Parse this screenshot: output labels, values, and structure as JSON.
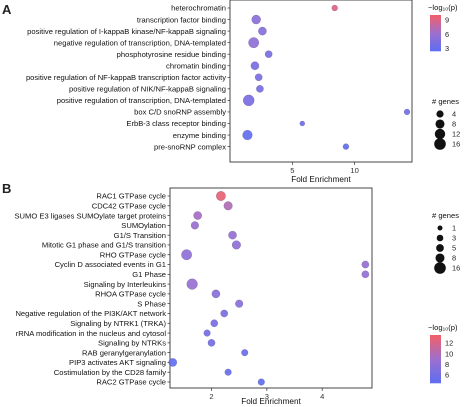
{
  "chart_data": [
    {
      "panel": "A",
      "type": "scatter",
      "xlabel": "Fold Enrichment",
      "xlim": [
        0,
        14.6
      ],
      "xticks": [
        5,
        10
      ],
      "categories": [
        "heterochromatin",
        "transcription factor binding",
        "positive regulation of I-kappaB kinase/NF-kappaB signaling",
        "negative regulation of transcription, DNA-templated",
        "phosphotyrosine residue binding",
        "chromatin binding",
        "positive regulation of NF-kappaB transcription factor activity",
        "positive regulation of NIK/NF-kappaB signaling",
        "positive regulation of transcription, DNA-templated",
        "box C/D snoRNP assembly",
        "ErbB-3 class receptor binding",
        "enzyme binding",
        "pre-snoRNP complex"
      ],
      "points": [
        {
          "x": 8.4,
          "genes": 2,
          "neglog10p": 9.2
        },
        {
          "x": 2.1,
          "genes": 8,
          "neglog10p": 5.3
        },
        {
          "x": 2.6,
          "genes": 6,
          "neglog10p": 5.0
        },
        {
          "x": 1.9,
          "genes": 12,
          "neglog10p": 5.6
        },
        {
          "x": 3.1,
          "genes": 4,
          "neglog10p": 4.3
        },
        {
          "x": 2.0,
          "genes": 6,
          "neglog10p": 4.2
        },
        {
          "x": 2.3,
          "genes": 4,
          "neglog10p": 4.2
        },
        {
          "x": 2.4,
          "genes": 4,
          "neglog10p": 4.1
        },
        {
          "x": 1.5,
          "genes": 14,
          "neglog10p": 4.3
        },
        {
          "x": 14.2,
          "genes": 2,
          "neglog10p": 3.9
        },
        {
          "x": 5.8,
          "genes": 1,
          "neglog10p": 3.6
        },
        {
          "x": 1.4,
          "genes": 10,
          "neglog10p": 2.8
        },
        {
          "x": 9.3,
          "genes": 2,
          "neglog10p": 3.0
        }
      ],
      "legend_color_title": "−log₁₀(p)",
      "legend_color_ticks": [
        9,
        6,
        3
      ],
      "legend_color_range": [
        2.5,
        10
      ],
      "legend_size_title": "# genes",
      "legend_size_values": [
        4,
        8,
        12,
        16
      ],
      "grid": false,
      "legend_position": "right"
    },
    {
      "panel": "B",
      "type": "scatter",
      "xlabel": "Fold Enrichment",
      "xlim": [
        1.25,
        4.9
      ],
      "xticks": [
        2,
        3,
        4
      ],
      "categories": [
        "RAC1 GTPase cycle",
        "CDC42 GTPase cycle",
        "SUMO E3 ligases SUMOylate target proteins",
        "SUMOylation",
        "G1/S Transition",
        "Mitotic G1 phase and G1/S transition",
        "RHO GTPase cycle",
        "Cyclin D associated events in G1",
        "G1 Phase",
        "Signaling by Interleukins",
        "RHOA GTPase cycle",
        "S Phase",
        "Negative regulation of the PI3K/AKT network",
        "Signaling by NTRK1 (TRKA)",
        "rRNA modification in the nucleus and cytosol",
        "Signaling by NTRKs",
        "RAB geranylgeranylation",
        "PIP3 activates AKT signaling",
        "Costimulation by the CD28 family",
        "RAC2 GTPase cycle"
      ],
      "points": [
        {
          "x": 2.17,
          "genes": 9,
          "neglog10p": 13.0
        },
        {
          "x": 2.3,
          "genes": 7,
          "neglog10p": 10.2
        },
        {
          "x": 1.75,
          "genes": 6,
          "neglog10p": 9.6
        },
        {
          "x": 1.7,
          "genes": 5,
          "neglog10p": 9.0
        },
        {
          "x": 2.38,
          "genes": 6,
          "neglog10p": 8.6
        },
        {
          "x": 2.45,
          "genes": 7,
          "neglog10p": 8.3
        },
        {
          "x": 1.55,
          "genes": 12,
          "neglog10p": 8.2
        },
        {
          "x": 4.78,
          "genes": 4,
          "neglog10p": 8.6
        },
        {
          "x": 4.78,
          "genes": 4,
          "neglog10p": 8.4
        },
        {
          "x": 1.65,
          "genes": 13,
          "neglog10p": 8.9
        },
        {
          "x": 2.08,
          "genes": 6,
          "neglog10p": 7.7
        },
        {
          "x": 2.5,
          "genes": 5,
          "neglog10p": 7.8
        },
        {
          "x": 2.23,
          "genes": 4,
          "neglog10p": 6.6
        },
        {
          "x": 2.05,
          "genes": 4,
          "neglog10p": 6.4
        },
        {
          "x": 1.92,
          "genes": 3,
          "neglog10p": 6.2
        },
        {
          "x": 2.0,
          "genes": 4,
          "neglog10p": 6.3
        },
        {
          "x": 2.6,
          "genes": 3,
          "neglog10p": 5.5
        },
        {
          "x": 1.3,
          "genes": 6,
          "neglog10p": 4.9
        },
        {
          "x": 2.3,
          "genes": 3,
          "neglog10p": 5.2
        },
        {
          "x": 2.9,
          "genes": 3,
          "neglog10p": 4.7
        }
      ],
      "legend_color_title": "−log₁₀(p)",
      "legend_color_ticks": [
        12,
        10,
        8,
        6
      ],
      "legend_color_range": [
        4.5,
        13.5
      ],
      "legend_size_title": "# genes",
      "legend_size_values": [
        1,
        3,
        5,
        8,
        16
      ],
      "grid": false,
      "legend_position": "right"
    }
  ],
  "colors": {
    "high": "#f0606a",
    "mid": "#9a6fd0",
    "low": "#5b6ef2",
    "panel_border": "#333333"
  }
}
